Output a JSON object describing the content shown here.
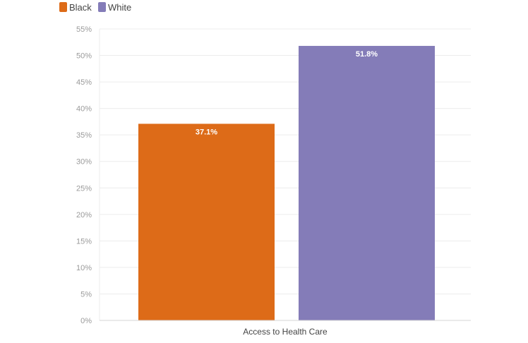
{
  "chart_data": {
    "type": "bar",
    "categories": [
      "Access to Health Care"
    ],
    "series": [
      {
        "name": "Black",
        "values": [
          37.1
        ],
        "color": "#dd6b18"
      },
      {
        "name": "White",
        "values": [
          51.8
        ],
        "color": "#847cb8"
      }
    ],
    "data_labels": [
      "37.1%",
      "51.8%"
    ],
    "ylim": [
      0,
      55
    ],
    "yticks": [
      0,
      5,
      10,
      15,
      20,
      25,
      30,
      35,
      40,
      45,
      50,
      55
    ],
    "ytick_labels": [
      "0%",
      "5%",
      "10%",
      "15%",
      "20%",
      "25%",
      "30%",
      "35%",
      "40%",
      "45%",
      "50%",
      "55%"
    ],
    "grid": true,
    "legend_position": "top-left"
  }
}
